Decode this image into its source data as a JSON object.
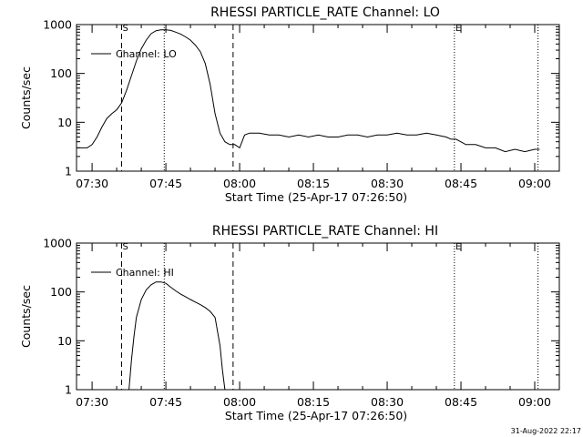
{
  "footer": {
    "timestamp": "31-Aug-2022 22:17"
  },
  "chart_data": [
    {
      "type": "line",
      "title": "RHESSI PARTICLE_RATE Channel: LO",
      "xlabel": "Start Time (25-Apr-17 07:26:50)",
      "ylabel": "Counts/sec",
      "yscale": "log",
      "ylim": [
        1,
        1000
      ],
      "xlim": [
        "07:26:50",
        "09:05:00"
      ],
      "xticks": [
        "07:30",
        "07:45",
        "08:00",
        "08:15",
        "08:30",
        "08:45",
        "09:00"
      ],
      "yticks": [
        "1",
        "10",
        "100",
        "1000"
      ],
      "legend": {
        "label": "Channel: LO",
        "position": "top-left"
      },
      "markers": [
        {
          "time": "07:36:00",
          "style": "dashed",
          "label": "S"
        },
        {
          "time": "07:44:40",
          "style": "dotted",
          "label": ""
        },
        {
          "time": "07:58:40",
          "style": "dashed",
          "label": ""
        },
        {
          "time": "08:43:40",
          "style": "dotted",
          "label": "E"
        },
        {
          "time": "09:00:40",
          "style": "dotted",
          "label": ""
        }
      ],
      "series": [
        {
          "name": "Channel: LO",
          "x": [
            "07:27:00",
            "07:28:00",
            "07:29:00",
            "07:30:00",
            "07:31:00",
            "07:32:00",
            "07:33:00",
            "07:34:00",
            "07:35:00",
            "07:36:00",
            "07:37:00",
            "07:38:00",
            "07:39:00",
            "07:40:00",
            "07:41:00",
            "07:42:00",
            "07:43:00",
            "07:44:00",
            "07:45:00",
            "07:46:00",
            "07:47:00",
            "07:48:00",
            "07:49:00",
            "07:50:00",
            "07:51:00",
            "07:52:00",
            "07:53:00",
            "07:54:00",
            "07:55:00",
            "07:56:00",
            "07:57:00",
            "07:58:00",
            "07:59:00",
            "08:00:00",
            "08:01:00",
            "08:02:00",
            "08:04:00",
            "08:06:00",
            "08:08:00",
            "08:10:00",
            "08:12:00",
            "08:14:00",
            "08:16:00",
            "08:18:00",
            "08:20:00",
            "08:22:00",
            "08:24:00",
            "08:26:00",
            "08:28:00",
            "08:30:00",
            "08:32:00",
            "08:34:00",
            "08:36:00",
            "08:38:00",
            "08:40:00",
            "08:42:00",
            "08:43:00",
            "08:44:00",
            "08:46:00",
            "08:48:00",
            "08:50:00",
            "08:52:00",
            "08:54:00",
            "08:56:00",
            "08:58:00",
            "09:00:00",
            "09:01:00"
          ],
          "y": [
            3,
            3,
            3,
            3.5,
            5,
            8,
            12,
            15,
            18,
            25,
            45,
            90,
            180,
            320,
            480,
            650,
            750,
            780,
            780,
            760,
            700,
            640,
            560,
            480,
            380,
            280,
            160,
            60,
            15,
            6,
            4,
            3.5,
            3.5,
            3,
            5.5,
            6,
            6,
            5.5,
            5.5,
            5,
            5.5,
            5,
            5.5,
            5,
            5,
            5.5,
            5.5,
            5,
            5.5,
            5.5,
            6,
            5.5,
            5.5,
            6,
            5.5,
            5,
            4.5,
            4.5,
            3.5,
            3.5,
            3,
            3,
            2.5,
            2.8,
            2.5,
            2.8,
            2.8
          ]
        }
      ]
    },
    {
      "type": "line",
      "title": "RHESSI PARTICLE_RATE Channel: HI",
      "xlabel": "Start Time (25-Apr-17 07:26:50)",
      "ylabel": "Counts/sec",
      "yscale": "log",
      "ylim": [
        1,
        1000
      ],
      "xlim": [
        "07:26:50",
        "09:05:00"
      ],
      "xticks": [
        "07:30",
        "07:45",
        "08:00",
        "08:15",
        "08:30",
        "08:45",
        "09:00"
      ],
      "yticks": [
        "1",
        "10",
        "100",
        "1000"
      ],
      "legend": {
        "label": "Channel: HI",
        "position": "top-left"
      },
      "markers": [
        {
          "time": "07:36:00",
          "style": "dashed",
          "label": "S"
        },
        {
          "time": "07:44:40",
          "style": "dotted",
          "label": ""
        },
        {
          "time": "07:58:40",
          "style": "dashed",
          "label": ""
        },
        {
          "time": "08:43:40",
          "style": "dotted",
          "label": "E"
        },
        {
          "time": "09:00:40",
          "style": "dotted",
          "label": ""
        }
      ],
      "series": [
        {
          "name": "Channel: HI",
          "x": [
            "07:37:30",
            "07:38:00",
            "07:38:30",
            "07:39:00",
            "07:40:00",
            "07:41:00",
            "07:42:00",
            "07:43:00",
            "07:44:00",
            "07:45:00",
            "07:46:00",
            "07:47:00",
            "07:48:00",
            "07:49:00",
            "07:50:00",
            "07:51:00",
            "07:52:00",
            "07:53:00",
            "07:54:00",
            "07:55:00",
            "07:56:00",
            "07:56:30",
            "07:57:00"
          ],
          "y": [
            1,
            4,
            12,
            30,
            70,
            110,
            140,
            160,
            160,
            150,
            125,
            105,
            90,
            80,
            70,
            62,
            55,
            48,
            40,
            30,
            8,
            2.5,
            1
          ]
        }
      ]
    }
  ]
}
